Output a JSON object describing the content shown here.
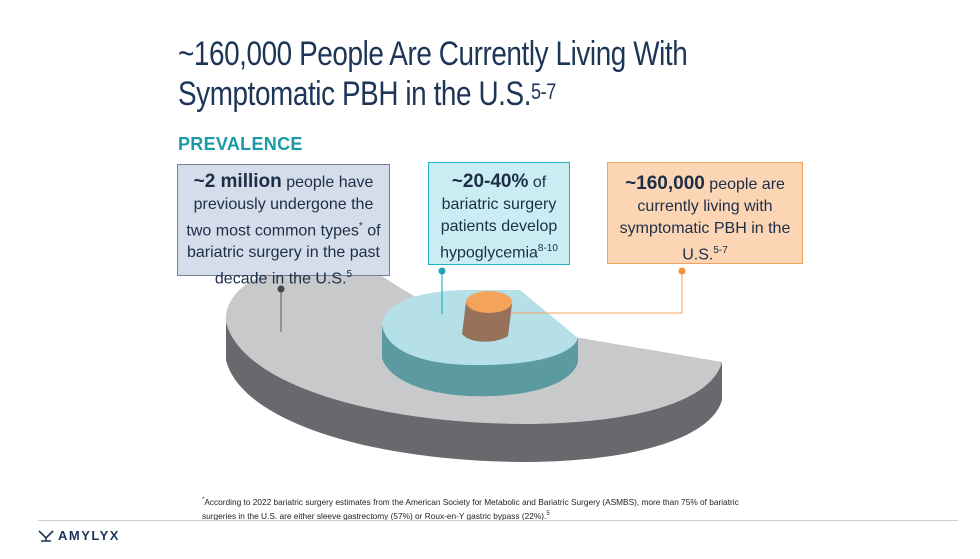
{
  "title": {
    "line1": "~160,000 People Are Currently Living With",
    "line2": "Symptomatic PBH in the U.S.",
    "sup": "5-7"
  },
  "section_label": "PREVALENCE",
  "boxes": {
    "bariatric": {
      "highlight": "~2 million",
      "text1": " people have previously undergone the two most common types",
      "sup1": "*",
      "text2": " of bariatric surgery in the past decade in the U.S.",
      "sup2": "5"
    },
    "hypoglycemia": {
      "highlight": "~20-40%",
      "text1": " of bariatric surgery patients develop hypoglycemia",
      "sup1": "8-10"
    },
    "pbh": {
      "highlight": "~160,000",
      "text1": " people are currently living with symptomatic PBH in the U.S.",
      "sup1": "5-7"
    }
  },
  "colors": {
    "outer_top": "#c8c9cb",
    "outer_side": "#67696d",
    "middle_top": "#b5e0e7",
    "middle_side": "#5a9aa0",
    "inner_top": "#f4a35a",
    "inner_side": "#97725b",
    "title": "#1d3557",
    "accent": "#1a9aa6"
  },
  "footnote": {
    "text": "According to 2022 bariatric surgery estimates from the American Society for Metabolic and Bariatric Surgery (ASMBS), more than 75% of bariatric surgeries in the U.S. are either sleeve gastrectomy (57%) or Roux-en-Y gastric bypass (22%).",
    "star": "*",
    "sup": "5"
  },
  "logo": {
    "text": "AMYLYX"
  }
}
